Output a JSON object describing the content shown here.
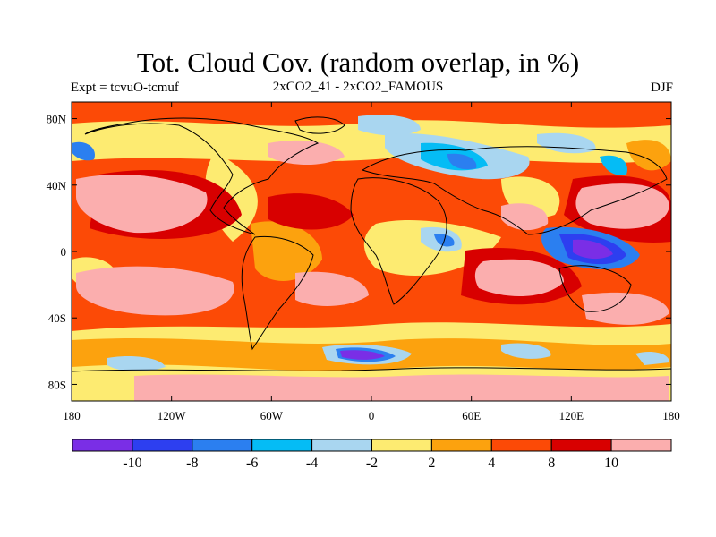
{
  "title": "Tot. Cloud Cov. (random overlap, in %)",
  "subtitle_left": "Expt = tcvuO-tcmuf",
  "subtitle_center": "2xCO2_41 - 2xCO2_FAMOUS",
  "subtitle_right": "DJF",
  "map": {
    "lon_range": [
      -180,
      180
    ],
    "lat_range": [
      -90,
      90
    ],
    "lat_ticks": [
      {
        "value": 80,
        "label": "80N"
      },
      {
        "value": 40,
        "label": "40N"
      },
      {
        "value": 0,
        "label": "0"
      },
      {
        "value": -40,
        "label": "40S"
      },
      {
        "value": -80,
        "label": "80S"
      }
    ],
    "lon_ticks": [
      {
        "value": -180,
        "label": "180"
      },
      {
        "value": -120,
        "label": "120W"
      },
      {
        "value": -60,
        "label": "60W"
      },
      {
        "value": 0,
        "label": "0"
      },
      {
        "value": 60,
        "label": "60E"
      },
      {
        "value": 120,
        "label": "120E"
      },
      {
        "value": 180,
        "label": "180"
      }
    ]
  },
  "colorbar": {
    "colors": [
      "#7a2ee6",
      "#2d3ff0",
      "#2b7ff0",
      "#05bcf5",
      "#a9d6f0",
      "#fdeb71",
      "#fca20e",
      "#fc4a06",
      "#d80000",
      "#fbaeae"
    ],
    "labels": [
      "-10",
      "-8",
      "-6",
      "-4",
      "-2",
      "2",
      "4",
      "8",
      "10"
    ]
  }
}
